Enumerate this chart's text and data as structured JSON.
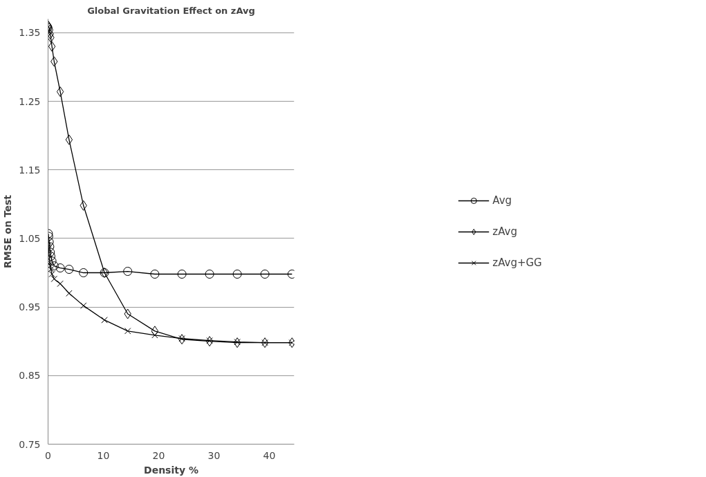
{
  "chart_data": {
    "type": "line",
    "title": "Global Gravitation Effect on zAvg",
    "xlabel": "Density %",
    "ylabel": "RMSE on Test",
    "x": [
      0.05,
      0.1,
      0.2,
      0.3,
      0.4,
      0.5,
      0.7,
      1.1,
      2.2,
      3.8,
      6.4,
      10.2,
      14.4,
      19.3,
      24.2,
      29.2,
      34.2,
      39.2,
      44.1
    ],
    "series": [
      {
        "name": "Avg",
        "color": "#000000",
        "marker": "circle",
        "values": [
          1.057,
          1.053,
          1.045,
          1.038,
          1.03,
          1.024,
          1.017,
          1.01,
          1.007,
          1.005,
          1.0,
          1.0,
          1.002,
          0.998,
          0.998,
          0.998,
          0.998,
          0.998,
          0.998
        ]
      },
      {
        "name": "zAvg",
        "color": "#000000",
        "marker": "diamond",
        "values": [
          1.36,
          1.359,
          1.357,
          1.354,
          1.348,
          1.343,
          1.33,
          1.308,
          1.264,
          1.194,
          1.098,
          1.0,
          0.94,
          0.915,
          0.903,
          0.9,
          0.898,
          0.898,
          0.898
        ]
      },
      {
        "name": "zAvg+GG",
        "color": "#000000",
        "marker": "cross",
        "values": [
          1.045,
          1.035,
          1.025,
          1.015,
          1.01,
          1.005,
          0.998,
          0.991,
          0.984,
          0.97,
          0.952,
          0.931,
          0.915,
          0.909,
          0.904,
          0.901,
          0.899,
          0.898,
          0.898
        ]
      }
    ],
    "xlim": [
      0,
      44.5
    ],
    "xticks": [
      0,
      10,
      20,
      30,
      40
    ],
    "ylim": [
      0.75,
      1.37
    ],
    "yticks": [
      0.75,
      0.85,
      0.95,
      1.05,
      1.15,
      1.25,
      1.35
    ],
    "grid": "y",
    "legend": "right"
  }
}
